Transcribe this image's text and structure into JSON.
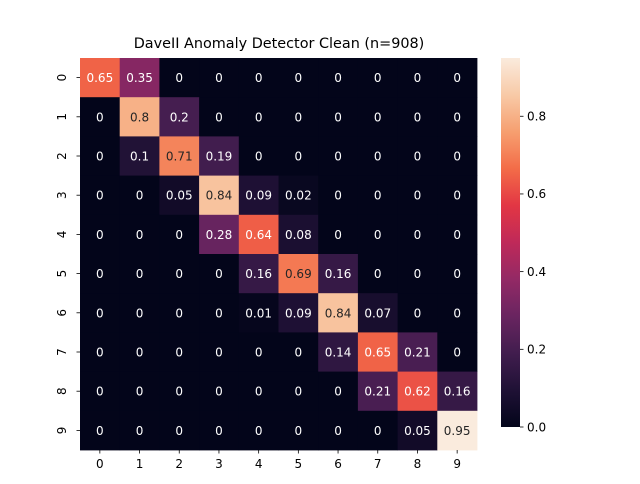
{
  "chart_data": {
    "type": "heatmap",
    "title": "DaveII Anomaly Detector Clean (n=908)",
    "xlabel": "",
    "ylabel": "",
    "x_labels": [
      "0",
      "1",
      "2",
      "3",
      "4",
      "5",
      "6",
      "7",
      "8",
      "9"
    ],
    "y_labels": [
      "0",
      "1",
      "2",
      "3",
      "4",
      "5",
      "6",
      "7",
      "8",
      "9"
    ],
    "values": [
      [
        0.65,
        0.35,
        0,
        0,
        0,
        0,
        0,
        0,
        0,
        0
      ],
      [
        0,
        0.8,
        0.2,
        0,
        0,
        0,
        0,
        0,
        0,
        0
      ],
      [
        0,
        0.1,
        0.71,
        0.19,
        0,
        0,
        0,
        0,
        0,
        0
      ],
      [
        0,
        0,
        0.05,
        0.84,
        0.09,
        0.02,
        0,
        0,
        0,
        0
      ],
      [
        0,
        0,
        0,
        0.28,
        0.64,
        0.08,
        0,
        0,
        0,
        0
      ],
      [
        0,
        0,
        0,
        0,
        0.16,
        0.69,
        0.16,
        0,
        0,
        0
      ],
      [
        0,
        0,
        0,
        0,
        0.01,
        0.09,
        0.84,
        0.07,
        0,
        0
      ],
      [
        0,
        0,
        0,
        0,
        0,
        0,
        0.14,
        0.65,
        0.21,
        0
      ],
      [
        0,
        0,
        0,
        0,
        0,
        0,
        0,
        0.21,
        0.62,
        0.16
      ],
      [
        0,
        0,
        0,
        0,
        0,
        0,
        0,
        0,
        0.05,
        0.95
      ]
    ],
    "colorbar": {
      "min": 0.0,
      "max": 0.95,
      "ticks": [
        0.0,
        0.2,
        0.4,
        0.6,
        0.8
      ],
      "tick_labels": [
        "0.0",
        "0.2",
        "0.4",
        "0.6",
        "0.8"
      ],
      "colormap": "rocket"
    },
    "annotation_colors": {
      "light_text": "#ffffff",
      "dark_text": "#262626"
    },
    "grid": false,
    "legend": "colorbar-right"
  }
}
